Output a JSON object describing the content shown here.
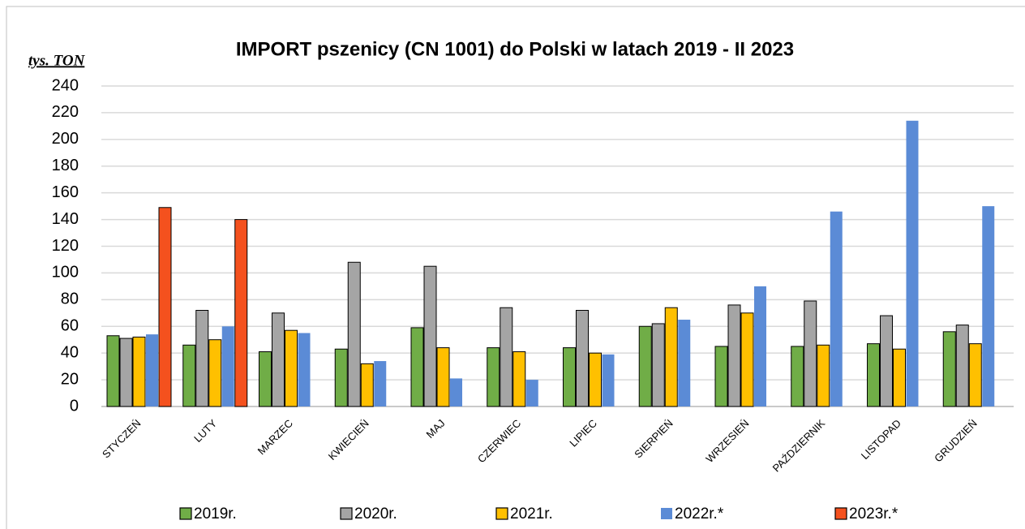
{
  "chart_data": {
    "type": "bar",
    "title": "IMPORT pszenicy (CN 1001) do Polski w latach 2019 - II 2023",
    "y_label": "tys. TON",
    "categories": [
      "STYCZEŃ",
      "LUTY",
      "MARZEC",
      "KWIECIEŃ",
      "MAJ",
      "CZERWIEC",
      "LIPIEC",
      "SIERPIEŃ",
      "WRZESIEŃ",
      "PAŹDZIERNIK",
      "LISTOPAD",
      "GRUDZIEŃ"
    ],
    "series": [
      {
        "name": "2019r.",
        "color": "#70ad47",
        "edgecolor": "#000000",
        "values": [
          53,
          46,
          41,
          43,
          59,
          44,
          44,
          60,
          45,
          45,
          47,
          56
        ]
      },
      {
        "name": "2020r.",
        "color": "#a5a5a5",
        "edgecolor": "#000000",
        "values": [
          51,
          72,
          70,
          108,
          105,
          74,
          72,
          62,
          76,
          79,
          68,
          61
        ]
      },
      {
        "name": "2021r.",
        "color": "#ffc000",
        "edgecolor": "#000000",
        "values": [
          52,
          50,
          57,
          32,
          44,
          41,
          40,
          74,
          70,
          46,
          43,
          47
        ]
      },
      {
        "name": "2022r.*",
        "color": "#5b8bd6",
        "edgecolor": null,
        "values": [
          54,
          60,
          55,
          34,
          21,
          20,
          39,
          65,
          90,
          146,
          214,
          150
        ]
      },
      {
        "name": "2023r.*",
        "color": "#f4511e",
        "edgecolor": "#000000",
        "values": [
          149,
          140,
          null,
          null,
          null,
          null,
          null,
          null,
          null,
          null,
          null,
          null
        ]
      }
    ],
    "ylim": [
      0,
      240
    ],
    "yticks": [
      0,
      20,
      40,
      60,
      80,
      100,
      120,
      140,
      160,
      180,
      200,
      220,
      240
    ],
    "grid": true,
    "legend": "bottom"
  }
}
